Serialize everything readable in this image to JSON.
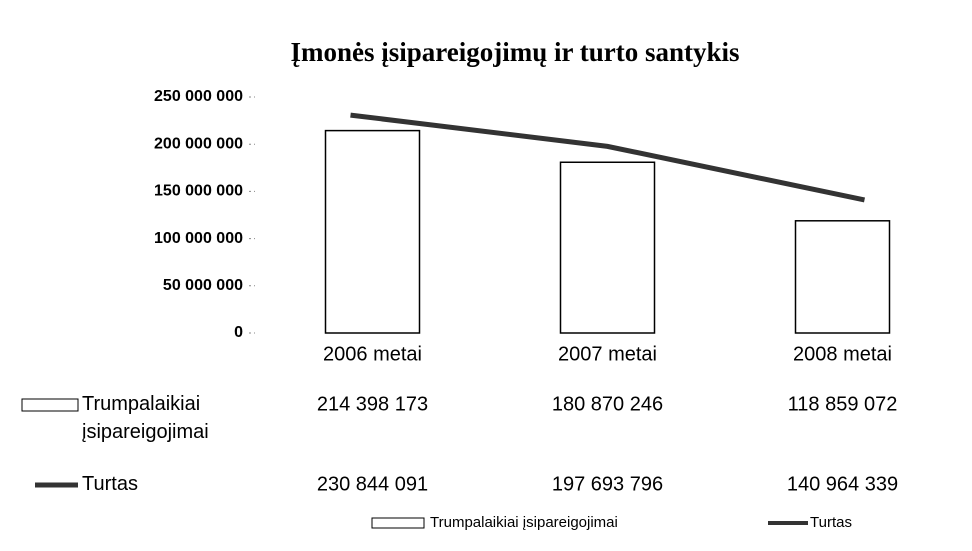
{
  "chart_data": {
    "type": "bar_line",
    "title": "Įmonės įsipareigojimų ir turto santykis",
    "categories": [
      "2006 metai",
      "2007 metai",
      "2008 metai"
    ],
    "series": [
      {
        "name": "Trumpalaikiai įsipareigojimai",
        "type": "bar",
        "color": "#ffffff",
        "values": [
          214398173,
          180870246,
          118859072
        ],
        "value_labels": [
          "214 398 173",
          "180 870 246",
          "118 859 072"
        ]
      },
      {
        "name": "Turtas",
        "type": "line",
        "color": "#333333",
        "values": [
          230844091,
          197693796,
          140964339
        ],
        "value_labels": [
          "230 844 091",
          "197 693 796",
          "140 964 339"
        ]
      }
    ],
    "ylim": [
      0,
      250000000
    ],
    "yticks": [
      0,
      {
        "value": 50000000,
        "label": "50 000 000"
      },
      {
        "value": 100000000,
        "label": "100 000 000"
      },
      {
        "value": 150000000,
        "label": "150 000 000"
      },
      {
        "value": 200000000,
        "label": "200 000 000"
      },
      {
        "value": 250000000,
        "label": "250 000 000"
      }
    ],
    "grid": false
  }
}
